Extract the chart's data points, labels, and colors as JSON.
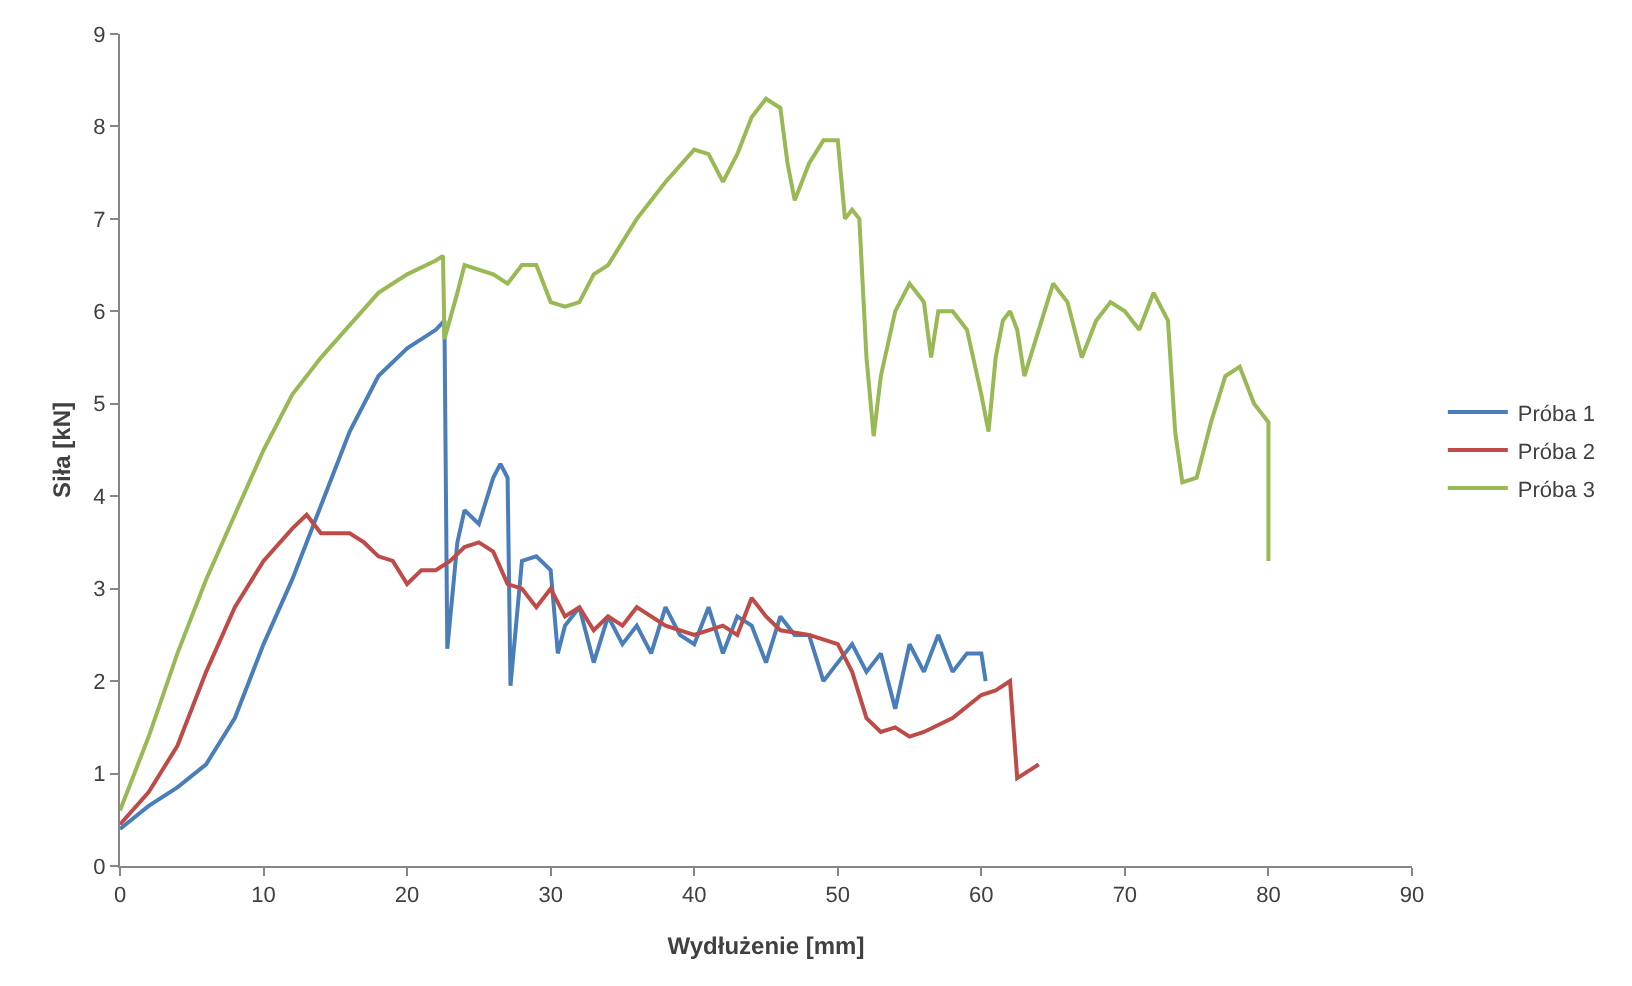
{
  "chart_data": {
    "type": "line",
    "xlabel": "Wydłużenie [mm]",
    "ylabel": "Siła [kN]",
    "xlim": [
      0,
      90
    ],
    "xticks": [
      0,
      10,
      20,
      30,
      40,
      50,
      60,
      70,
      80,
      90
    ],
    "ylim": [
      0,
      9
    ],
    "yticks": [
      0,
      1,
      2,
      3,
      4,
      5,
      6,
      7,
      8,
      9
    ],
    "grid": false,
    "legend": "right",
    "marker": "none",
    "line_style": "solid",
    "series": [
      {
        "name": "Próba 1",
        "color": "#4a7ebb",
        "x": [
          0,
          2,
          4,
          6,
          8,
          10,
          12,
          14,
          16,
          18,
          20,
          22,
          22.6,
          22.8,
          23.5,
          24,
          25,
          26,
          26.5,
          27,
          27.2,
          28,
          29,
          30,
          30.5,
          31,
          32,
          33,
          34,
          35,
          36,
          37,
          38,
          39,
          40,
          41,
          42,
          43,
          44,
          45,
          46,
          47,
          48,
          49,
          50,
          51,
          52,
          53,
          54,
          55,
          56,
          57,
          58,
          59,
          60,
          60.3
        ],
        "values": [
          0.4,
          0.65,
          0.85,
          1.1,
          1.6,
          2.4,
          3.1,
          3.9,
          4.7,
          5.3,
          5.6,
          5.8,
          5.9,
          2.35,
          3.5,
          3.85,
          3.7,
          4.2,
          4.35,
          4.2,
          1.95,
          3.3,
          3.35,
          3.2,
          2.3,
          2.6,
          2.8,
          2.2,
          2.7,
          2.4,
          2.6,
          2.3,
          2.8,
          2.5,
          2.4,
          2.8,
          2.3,
          2.7,
          2.6,
          2.2,
          2.7,
          2.5,
          2.5,
          2.0,
          2.2,
          2.4,
          2.1,
          2.3,
          1.7,
          2.4,
          2.1,
          2.5,
          2.1,
          2.3,
          2.3,
          2.0
        ]
      },
      {
        "name": "Próba 2",
        "color": "#be4b48",
        "x": [
          0,
          2,
          4,
          6,
          8,
          10,
          12,
          13,
          14,
          16,
          17,
          18,
          19,
          20,
          21,
          22,
          23,
          24,
          25,
          26,
          27,
          28,
          29,
          30,
          31,
          32,
          33,
          34,
          35,
          36,
          38,
          40,
          42,
          43,
          44,
          45,
          46,
          48,
          50,
          51,
          52,
          53,
          54,
          55,
          56,
          58,
          60,
          61,
          62,
          62.5,
          63,
          64
        ],
        "values": [
          0.45,
          0.8,
          1.3,
          2.1,
          2.8,
          3.3,
          3.65,
          3.8,
          3.6,
          3.6,
          3.5,
          3.35,
          3.3,
          3.05,
          3.2,
          3.2,
          3.3,
          3.45,
          3.5,
          3.4,
          3.05,
          3.0,
          2.8,
          3.0,
          2.7,
          2.8,
          2.55,
          2.7,
          2.6,
          2.8,
          2.6,
          2.5,
          2.6,
          2.5,
          2.9,
          2.7,
          2.55,
          2.5,
          2.4,
          2.1,
          1.6,
          1.45,
          1.5,
          1.4,
          1.45,
          1.6,
          1.85,
          1.9,
          2.0,
          0.95,
          1.0,
          1.1
        ]
      },
      {
        "name": "Próba 3",
        "color": "#98b954",
        "x": [
          0,
          2,
          4,
          6,
          8,
          10,
          12,
          14,
          16,
          18,
          20,
          22,
          22.5,
          22.6,
          23.5,
          24,
          26,
          27,
          28,
          29,
          30,
          31,
          32,
          33,
          34,
          36,
          38,
          40,
          41,
          42,
          43,
          44,
          45,
          46,
          46.5,
          47,
          48,
          49,
          50,
          50.5,
          51,
          51.5,
          52,
          52.5,
          53,
          54,
          55,
          55.5,
          56,
          56.5,
          57,
          58,
          58.5,
          59,
          60,
          60.5,
          61,
          61.5,
          62,
          62.5,
          63,
          64,
          65,
          66,
          67,
          68,
          69,
          70,
          71,
          72,
          73,
          73.5,
          74,
          75,
          76,
          77,
          78,
          79,
          80,
          80
        ],
        "values": [
          0.6,
          1.4,
          2.3,
          3.1,
          3.8,
          4.5,
          5.1,
          5.5,
          5.85,
          6.2,
          6.4,
          6.55,
          6.6,
          5.7,
          6.2,
          6.5,
          6.4,
          6.3,
          6.5,
          6.5,
          6.1,
          6.05,
          6.1,
          6.4,
          6.5,
          7.0,
          7.4,
          7.75,
          7.7,
          7.4,
          7.7,
          8.1,
          8.3,
          8.2,
          7.6,
          7.2,
          7.6,
          7.85,
          7.85,
          7.0,
          7.1,
          7.0,
          5.5,
          4.65,
          5.3,
          6.0,
          6.3,
          6.2,
          6.1,
          5.5,
          6.0,
          6.0,
          5.9,
          5.8,
          5.1,
          4.7,
          5.5,
          5.9,
          6.0,
          5.8,
          5.3,
          5.8,
          6.3,
          6.1,
          5.5,
          5.9,
          6.1,
          6.0,
          5.8,
          6.2,
          5.9,
          4.7,
          4.15,
          4.2,
          4.8,
          5.3,
          5.4,
          5.0,
          4.8,
          3.3
        ]
      }
    ]
  }
}
